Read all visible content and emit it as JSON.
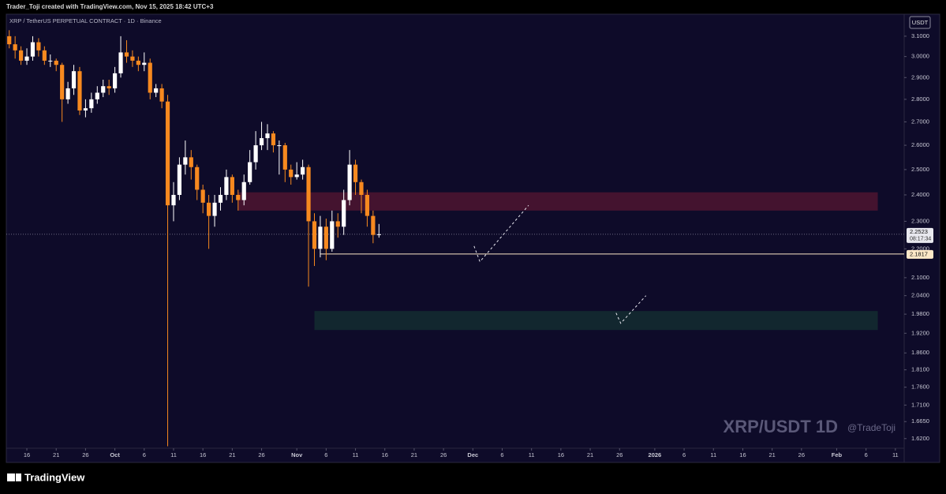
{
  "header": {
    "credit": "Trader_Toji created with TradingView.com, Nov 15, 2025 18:42 UTC+3"
  },
  "footer": {
    "brand": "TradingView"
  },
  "chart_data": {
    "type": "candlestick",
    "title": "XRP / TetherUS PERPETUAL CONTRACT · 1D · Binance",
    "currency": "USDT",
    "watermark": "XRP/USDT 1D",
    "author": "@TradeToji",
    "log_scale": true,
    "grid": false,
    "up_color": "#ffffff",
    "down_color": "#f7891f",
    "xlim": [
      -0.5,
      152.5
    ],
    "ylim": [
      1.595,
      3.212
    ],
    "xticks": [
      {
        "value": 3,
        "label": "16"
      },
      {
        "value": 8,
        "label": "21"
      },
      {
        "value": 13,
        "label": "26"
      },
      {
        "value": 18,
        "label": "Oct"
      },
      {
        "value": 23,
        "label": "6"
      },
      {
        "value": 28,
        "label": "11"
      },
      {
        "value": 33,
        "label": "16"
      },
      {
        "value": 38,
        "label": "21"
      },
      {
        "value": 43,
        "label": "26"
      },
      {
        "value": 49,
        "label": "Nov"
      },
      {
        "value": 54,
        "label": "6"
      },
      {
        "value": 59,
        "label": "11"
      },
      {
        "value": 64,
        "label": "16"
      },
      {
        "value": 69,
        "label": "21"
      },
      {
        "value": 74,
        "label": "26"
      },
      {
        "value": 79,
        "label": "Dec"
      },
      {
        "value": 84,
        "label": "6"
      },
      {
        "value": 89,
        "label": "11"
      },
      {
        "value": 94,
        "label": "16"
      },
      {
        "value": 99,
        "label": "21"
      },
      {
        "value": 104,
        "label": "26"
      },
      {
        "value": 110,
        "label": "2026"
      },
      {
        "value": 115,
        "label": "6"
      },
      {
        "value": 120,
        "label": "11"
      },
      {
        "value": 125,
        "label": "16"
      },
      {
        "value": 130,
        "label": "21"
      },
      {
        "value": 135,
        "label": "26"
      },
      {
        "value": 141,
        "label": "Feb"
      },
      {
        "value": 146,
        "label": "6"
      },
      {
        "value": 151,
        "label": "11"
      }
    ],
    "yticks": [
      {
        "value": 3.1,
        "label": "3.1000"
      },
      {
        "value": 3.0,
        "label": "3.0000"
      },
      {
        "value": 2.9,
        "label": "2.9000"
      },
      {
        "value": 2.8,
        "label": "2.8000"
      },
      {
        "value": 2.7,
        "label": "2.7000"
      },
      {
        "value": 2.6,
        "label": "2.6000"
      },
      {
        "value": 2.5,
        "label": "2.5000"
      },
      {
        "value": 2.4,
        "label": "2.4000"
      },
      {
        "value": 2.3,
        "label": "2.3000"
      },
      {
        "value": 2.2,
        "label": "2.2000"
      },
      {
        "value": 2.1,
        "label": "2.1000"
      },
      {
        "value": 2.04,
        "label": "2.0400"
      },
      {
        "value": 1.98,
        "label": "1.9800"
      },
      {
        "value": 1.92,
        "label": "1.9200"
      },
      {
        "value": 1.86,
        "label": "1.8600"
      },
      {
        "value": 1.81,
        "label": "1.8100"
      },
      {
        "value": 1.76,
        "label": "1.7600"
      },
      {
        "value": 1.71,
        "label": "1.7100"
      },
      {
        "value": 1.665,
        "label": "1.6650"
      },
      {
        "value": 1.62,
        "label": "1.6200"
      }
    ],
    "x": [
      0,
      1,
      2,
      3,
      4,
      5,
      6,
      7,
      8,
      9,
      10,
      11,
      12,
      13,
      14,
      15,
      16,
      17,
      18,
      19,
      20,
      21,
      22,
      23,
      24,
      25,
      26,
      27,
      28,
      29,
      30,
      31,
      32,
      33,
      34,
      35,
      36,
      37,
      38,
      39,
      40,
      41,
      42,
      43,
      44,
      45,
      46,
      47,
      48,
      49,
      50,
      51,
      52,
      53,
      54,
      55,
      56,
      57,
      58,
      59,
      60,
      61,
      62,
      63
    ],
    "open": [
      3.1,
      3.06,
      3.03,
      2.98,
      3.0,
      3.07,
      3.03,
      2.98,
      2.98,
      2.96,
      2.8,
      2.85,
      2.93,
      2.75,
      2.76,
      2.8,
      2.83,
      2.86,
      2.85,
      2.92,
      3.02,
      3.0,
      2.98,
      2.96,
      2.97,
      2.83,
      2.85,
      2.79,
      2.36,
      2.4,
      2.52,
      2.55,
      2.51,
      2.42,
      2.37,
      2.32,
      2.37,
      2.4,
      2.47,
      2.4,
      2.38,
      2.45,
      2.53,
      2.6,
      2.63,
      2.65,
      2.6,
      2.6,
      2.5,
      2.47,
      2.48,
      2.51,
      2.3,
      2.2,
      2.28,
      2.2,
      2.3,
      2.28,
      2.38,
      2.52,
      2.45,
      2.4,
      2.32,
      2.25
    ],
    "high": [
      3.13,
      3.1,
      3.05,
      3.04,
      3.1,
      3.09,
      3.05,
      3.01,
      2.99,
      2.97,
      2.88,
      2.96,
      2.95,
      2.8,
      2.83,
      2.86,
      2.89,
      2.89,
      2.95,
      3.1,
      3.08,
      3.03,
      3.0,
      3.02,
      2.99,
      2.87,
      2.87,
      2.82,
      2.45,
      2.55,
      2.62,
      2.58,
      2.52,
      2.44,
      2.4,
      2.4,
      2.43,
      2.5,
      2.48,
      2.42,
      2.48,
      2.58,
      2.66,
      2.7,
      2.69,
      2.66,
      2.62,
      2.61,
      2.52,
      2.53,
      2.54,
      2.52,
      2.33,
      2.32,
      2.31,
      2.34,
      2.33,
      2.42,
      2.58,
      2.54,
      2.46,
      2.42,
      2.34,
      2.29
    ],
    "low": [
      3.04,
      2.99,
      2.96,
      2.96,
      2.98,
      3.0,
      2.96,
      2.95,
      2.93,
      2.7,
      2.78,
      2.82,
      2.73,
      2.72,
      2.74,
      2.78,
      2.81,
      2.82,
      2.83,
      2.9,
      2.97,
      2.95,
      2.93,
      2.93,
      2.8,
      2.81,
      2.76,
      1.6,
      2.3,
      2.38,
      2.48,
      2.46,
      2.38,
      2.33,
      2.2,
      2.28,
      2.34,
      2.38,
      2.37,
      2.34,
      2.36,
      2.44,
      2.5,
      2.58,
      2.58,
      2.57,
      2.48,
      2.45,
      2.44,
      2.46,
      2.46,
      2.07,
      2.14,
      2.17,
      2.16,
      2.19,
      2.24,
      2.25,
      2.36,
      2.4,
      2.33,
      2.28,
      2.22,
      2.24
    ],
    "close": [
      3.06,
      3.03,
      2.98,
      3.0,
      3.07,
      3.03,
      2.98,
      2.98,
      2.96,
      2.8,
      2.85,
      2.93,
      2.75,
      2.76,
      2.8,
      2.83,
      2.86,
      2.85,
      2.92,
      3.02,
      3.0,
      2.98,
      2.96,
      2.97,
      2.83,
      2.85,
      2.79,
      2.36,
      2.4,
      2.52,
      2.55,
      2.51,
      2.42,
      2.37,
      2.32,
      2.37,
      2.4,
      2.47,
      2.4,
      2.38,
      2.45,
      2.53,
      2.6,
      2.63,
      2.65,
      2.6,
      2.6,
      2.5,
      2.47,
      2.48,
      2.51,
      2.3,
      2.2,
      2.28,
      2.2,
      2.3,
      2.28,
      2.38,
      2.52,
      2.45,
      2.4,
      2.32,
      2.25,
      2.2523
    ],
    "zones": [
      {
        "color": "#4a1430",
        "x0": 39,
        "x1": 148,
        "top": 2.41,
        "bottom": 2.34
      },
      {
        "color": "#132a30",
        "x0": 52,
        "x1": 148,
        "top": 1.99,
        "bottom": 1.93
      }
    ],
    "level": {
      "value": 2.1817,
      "x0": 53,
      "color": "#fde8c8"
    },
    "last_price": {
      "value": 2.2523,
      "countdown": "08:17:34"
    },
    "projections": [
      {
        "x": [
          79.2,
          80.2,
          88.5
        ],
        "y": [
          2.21,
          2.155,
          2.36
        ]
      },
      {
        "x": [
          103.4,
          104.2,
          108.5
        ],
        "y": [
          1.984,
          1.951,
          2.04
        ]
      }
    ]
  }
}
